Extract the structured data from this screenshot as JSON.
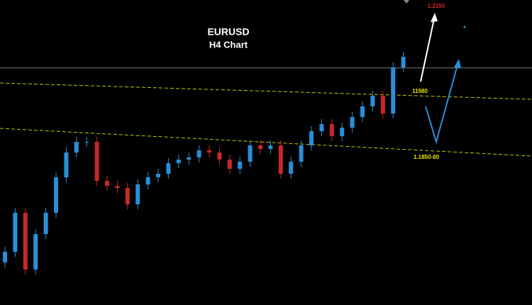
{
  "chart_data": {
    "type": "candlestick",
    "title": "EURUSD",
    "subtitle": "H4 Chart",
    "categories": [
      null,
      null,
      null,
      null,
      null,
      null,
      null,
      null,
      null,
      null,
      null,
      null,
      null,
      null,
      null,
      null,
      null,
      null,
      null,
      null,
      null,
      null,
      null,
      null,
      null,
      null,
      null,
      null,
      null,
      null,
      null,
      null,
      null,
      null,
      null,
      null,
      null,
      null,
      null,
      null
    ],
    "open": [
      1.1644,
      1.1665,
      1.1742,
      1.163,
      1.17,
      1.1742,
      1.1812,
      1.1861,
      1.1882,
      1.1882,
      1.1805,
      1.17952,
      1.1791,
      1.17588,
      1.1798,
      1.1812,
      1.1819,
      1.184,
      1.1847,
      1.18512,
      1.18652,
      1.1861,
      1.1847,
      1.18288,
      1.18428,
      1.1875,
      1.1868,
      1.1875,
      1.1819,
      1.18428,
      1.1875,
      1.1903,
      1.1917,
      1.18932,
      1.191,
      1.1931,
      1.1952,
      1.1973,
      1.1938,
      1.2029
    ],
    "high": [
      1.1675,
      1.1752,
      1.1752,
      1.171,
      1.1752,
      1.1822,
      1.1871,
      1.1892,
      1.1892,
      1.1892,
      1.1815,
      1.18052,
      1.1801,
      1.1808,
      1.1822,
      1.1829,
      1.185,
      1.1857,
      1.18612,
      1.18752,
      1.18752,
      1.1871,
      1.1857,
      1.18528,
      1.1885,
      1.1885,
      1.1885,
      1.1885,
      1.18528,
      1.1885,
      1.1913,
      1.1927,
      1.1927,
      1.192,
      1.1941,
      1.1962,
      1.1983,
      1.1983,
      1.2039,
      1.206
    ],
    "low": [
      1.1634,
      1.1655,
      1.162,
      1.162,
      1.169,
      1.1732,
      1.1802,
      1.1851,
      1.1872,
      1.1795,
      1.17852,
      1.1781,
      1.17488,
      1.17488,
      1.1788,
      1.1802,
      1.1809,
      1.183,
      1.1837,
      1.18412,
      1.1851,
      1.1837,
      1.18188,
      1.18188,
      1.18328,
      1.1858,
      1.1858,
      1.1809,
      1.1809,
      1.18328,
      1.1865,
      1.1893,
      1.18832,
      1.18832,
      1.19,
      1.1921,
      1.1942,
      1.1928,
      1.1928,
      1.2019
    ],
    "close": [
      1.1665,
      1.1742,
      1.163,
      1.17,
      1.1742,
      1.1812,
      1.1861,
      1.1882,
      1.1882,
      1.1805,
      1.17952,
      1.1791,
      1.17588,
      1.1798,
      1.1812,
      1.1819,
      1.184,
      1.1847,
      1.18512,
      1.18652,
      1.1861,
      1.1847,
      1.18288,
      1.18428,
      1.1875,
      1.1868,
      1.1875,
      1.1819,
      1.18428,
      1.1875,
      1.1903,
      1.1917,
      1.18932,
      1.191,
      1.1931,
      1.1952,
      1.1973,
      1.1938,
      1.2029,
      1.205
    ],
    "up_color": "#2a8fd8",
    "down_color": "#c8282a",
    "price_line": 1.2028,
    "ylim": [
      1.156,
      1.2162
    ],
    "annotations": [
      "1.2150",
      "11980",
      "1.1850-80"
    ]
  }
}
